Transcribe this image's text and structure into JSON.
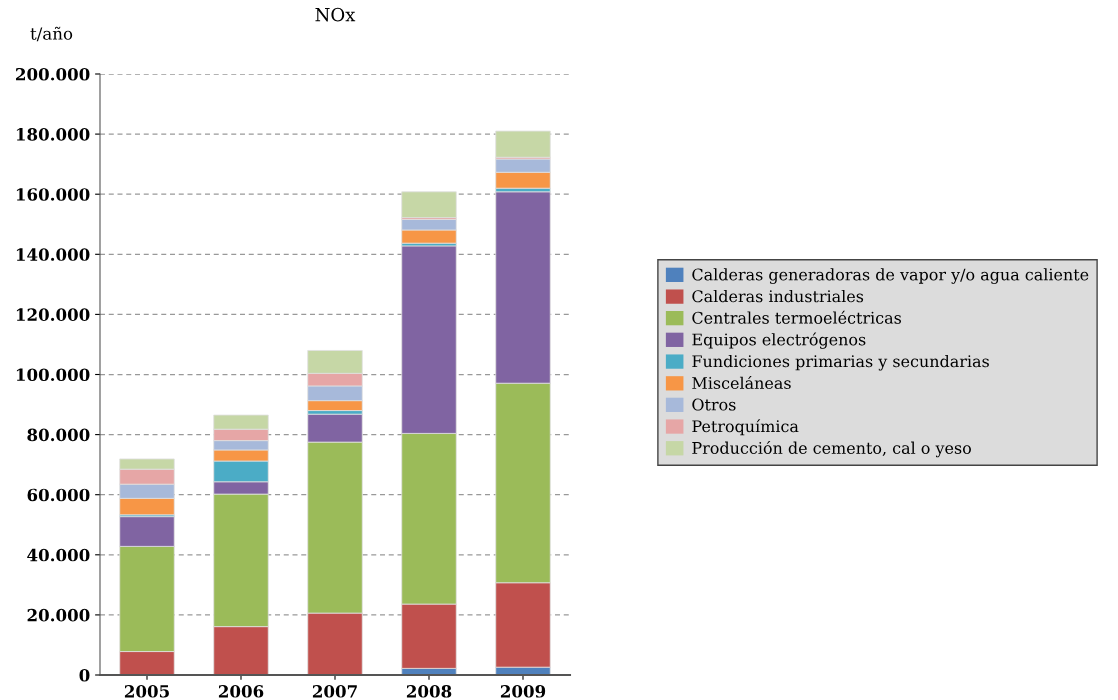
{
  "chart_data": {
    "type": "bar",
    "stacked": true,
    "title": "NOx",
    "ylabel": "t/año",
    "categories": [
      "2005",
      "2006",
      "2007",
      "2008",
      "2009"
    ],
    "series": [
      {
        "name": "Calderas generadoras de vapor y/o agua caliente",
        "color": "#4f81bd",
        "values": [
          null,
          0,
          null,
          2200,
          2600
        ]
      },
      {
        "name": "Calderas industriales",
        "color": "#c0504d",
        "values": [
          7800,
          16100,
          20600,
          21400,
          28100
        ]
      },
      {
        "name": "Centrales termoeléctricas",
        "color": "#9bbb59",
        "values": [
          35000,
          44100,
          56900,
          56800,
          66400
        ]
      },
      {
        "name": "Equipos electrógenos",
        "color": "#8064a2",
        "values": [
          9900,
          4100,
          9300,
          62400,
          63700
        ]
      },
      {
        "name": "Fundiciones primarias y secundarias",
        "color": "#4bacc6",
        "values": [
          600,
          6900,
          1200,
          900,
          1200
        ]
      },
      {
        "name": "Misceláneas",
        "color": "#f79646",
        "values": [
          5500,
          3700,
          3300,
          4400,
          5300
        ]
      },
      {
        "name": "Otros",
        "color": "#a7b9da",
        "values": [
          4700,
          3100,
          4900,
          3500,
          4400
        ]
      },
      {
        "name": "Petroquímica",
        "color": "#e6a6a6",
        "values": [
          5000,
          3800,
          4200,
          600,
          600
        ]
      },
      {
        "name": "Producción de cemento, cal o yeso",
        "color": "#c6d7a6",
        "values": [
          3400,
          4700,
          7600,
          8600,
          8700
        ]
      }
    ],
    "ylim": [
      0,
      200000
    ],
    "yticks": [
      {
        "value": 0,
        "label": "0"
      },
      {
        "value": 20000,
        "label": "20.000"
      },
      {
        "value": 40000,
        "label": "40.000"
      },
      {
        "value": 60000,
        "label": "60.000"
      },
      {
        "value": 80000,
        "label": "80.000"
      },
      {
        "value": 100000,
        "label": "100.000"
      },
      {
        "value": 120000,
        "label": "120.000"
      },
      {
        "value": 140000,
        "label": "140.000"
      },
      {
        "value": 160000,
        "label": "160.000"
      },
      {
        "value": 180000,
        "label": "180.000"
      },
      {
        "value": 200000,
        "label": "200.000"
      }
    ],
    "grid": "y",
    "legend": "right"
  }
}
